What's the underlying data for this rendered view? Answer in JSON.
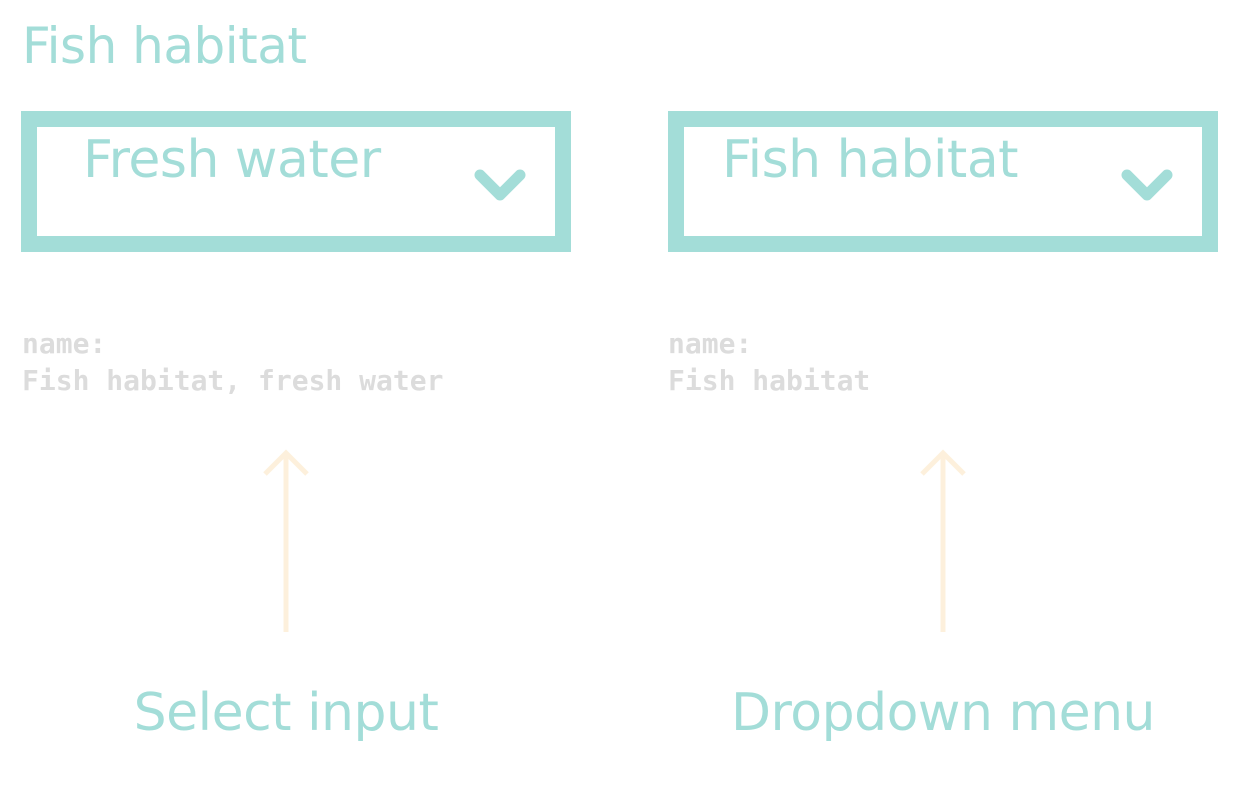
{
  "heading": "Fish habitat",
  "select_input": {
    "value": "Fresh water",
    "code_key": "name:",
    "code_value": "Fish habitat, fresh water",
    "caption": "Select input"
  },
  "dropdown_menu": {
    "value": "Fish habitat",
    "code_key": "name:",
    "code_value": "Fish habitat",
    "caption": "Dropdown menu"
  },
  "colors": {
    "accent": "#a3ddd8",
    "code_text": "#dcdcdc",
    "arrow": "#fdf0dc"
  },
  "icons": {
    "select_chevron": "chevron-down-icon",
    "arrow": "arrow-up-icon"
  }
}
